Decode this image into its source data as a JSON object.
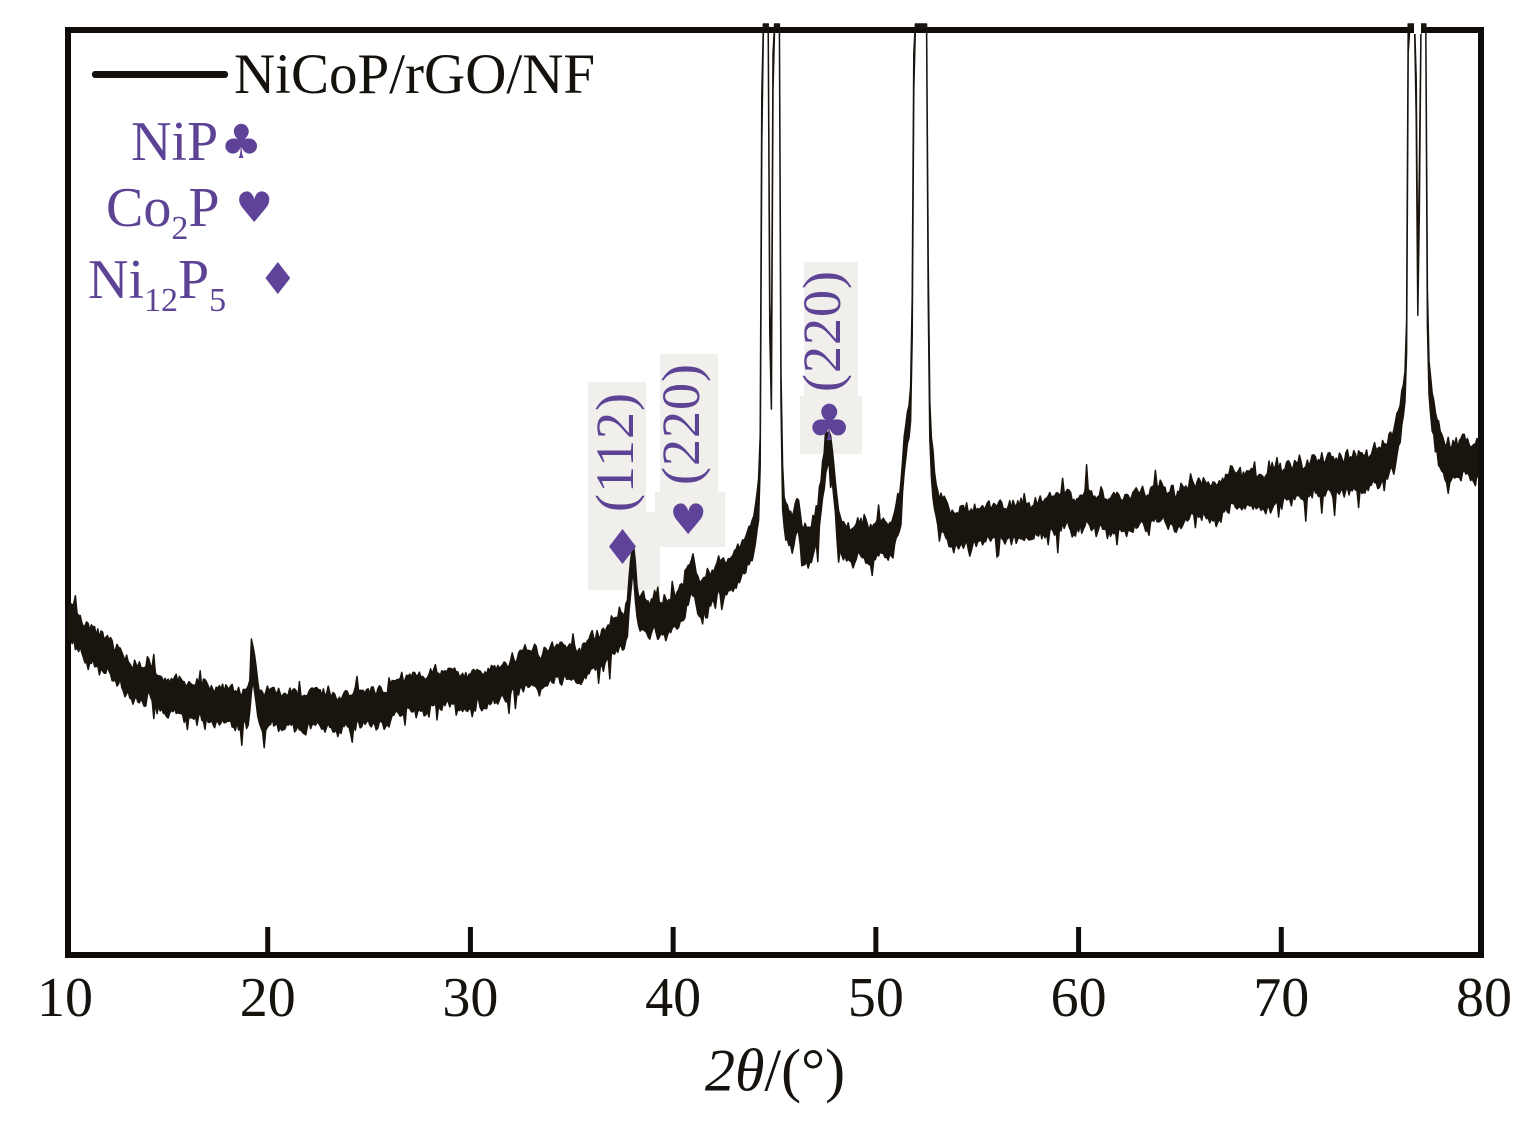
{
  "colors": {
    "trace": "#1a140f",
    "axis": "#0f0c0a",
    "purple_text": "#5c4394",
    "purple_marker": "#5e4399",
    "artifact_box": "#f1efec"
  },
  "legend": {
    "series": {
      "label": "NiCoP/rGO/NF"
    },
    "phases": [
      {
        "name": "NiP",
        "marker": "club",
        "marker_glyph": "♣",
        "parts": {
          "pre": "NiP"
        }
      },
      {
        "name": "Co2P",
        "marker": "heart",
        "marker_glyph": "♥",
        "parts": {
          "pre": "Co",
          "sub1": "2",
          "mid": "P"
        }
      },
      {
        "name": "Ni12P5",
        "marker": "diamond",
        "marker_glyph": "♦",
        "parts": {
          "pre": "Ni",
          "sub1": "12",
          "mid": "P",
          "sub2": "5"
        }
      }
    ]
  },
  "axis": {
    "xlabel_italic": "2θ",
    "xlabel_rest": "/(°)"
  },
  "chart_data": {
    "type": "line",
    "title": "",
    "xlabel": "2θ/(°)",
    "ylabel": "",
    "xlim": [
      10,
      80
    ],
    "x_ticks": [
      10,
      20,
      30,
      40,
      50,
      60,
      70,
      80
    ],
    "grid": false,
    "legend_position": "top-left",
    "series": [
      {
        "name": "NiCoP/rGO/NF",
        "color": "#1a140f"
      }
    ],
    "baseline_au": [
      [
        10,
        338
      ],
      [
        11.5,
        310
      ],
      [
        13,
        287
      ],
      [
        15,
        267
      ],
      [
        17,
        255
      ],
      [
        19,
        250
      ],
      [
        21,
        248
      ],
      [
        23,
        249
      ],
      [
        25,
        253
      ],
      [
        27,
        258
      ],
      [
        29,
        265
      ],
      [
        31,
        274
      ],
      [
        33,
        286
      ],
      [
        35,
        299
      ],
      [
        37,
        316
      ],
      [
        39,
        337
      ],
      [
        41,
        355
      ],
      [
        42.5,
        380
      ],
      [
        43.5,
        398
      ],
      [
        44.2,
        408
      ],
      [
        45,
        404
      ],
      [
        46,
        410
      ],
      [
        47.6,
        420
      ],
      [
        49,
        412
      ],
      [
        50.5,
        420
      ],
      [
        52,
        428
      ],
      [
        53.5,
        429
      ],
      [
        55,
        431
      ],
      [
        57,
        436
      ],
      [
        59,
        440
      ],
      [
        61,
        446
      ],
      [
        63,
        451
      ],
      [
        65,
        456
      ],
      [
        67,
        462
      ],
      [
        69,
        470
      ],
      [
        71,
        477
      ],
      [
        73,
        482
      ],
      [
        74.5,
        491
      ],
      [
        75.7,
        504
      ],
      [
        76.8,
        504
      ],
      [
        78,
        498
      ],
      [
        80,
        501
      ]
    ],
    "peaks": [
      {
        "two_theta": 19.3,
        "amplitude": 42,
        "sigma": 0.12
      },
      {
        "two_theta": 38.0,
        "amplitude": 62,
        "sigma": 0.16
      },
      {
        "two_theta": 40.9,
        "amplitude": 26,
        "sigma": 0.22
      },
      {
        "two_theta": 44.55,
        "amplitude": 3000,
        "sigma": 0.085,
        "clipped": true
      },
      {
        "two_theta": 45.1,
        "amplitude": 3000,
        "sigma": 0.085,
        "clipped": true
      },
      {
        "two_theta": 46.15,
        "amplitude": 30,
        "sigma": 0.12
      },
      {
        "two_theta": 47.65,
        "amplitude": 90,
        "sigma": 0.28
      },
      {
        "two_theta": 51.5,
        "amplitude": 55,
        "sigma": 0.18
      },
      {
        "two_theta": 52.2,
        "amplitude": 3000,
        "sigma": 0.16,
        "clipped": true
      },
      {
        "two_theta": 76.45,
        "amplitude": 3000,
        "sigma": 0.09,
        "clipped": true
      },
      {
        "two_theta": 77.0,
        "amplitude": 3000,
        "sigma": 0.075,
        "clipped": true
      },
      {
        "two_theta": 44.8,
        "amplitude": 120,
        "sigma": 0.45
      },
      {
        "two_theta": 52.2,
        "amplitude": 120,
        "sigma": 0.5
      },
      {
        "two_theta": 76.7,
        "amplitude": 140,
        "sigma": 0.5
      }
    ],
    "annotations": [
      {
        "hkl": "(112)",
        "phase": "Ni12P5",
        "marker": "diamond",
        "marker_glyph": "♦",
        "two_theta": 37.5
      },
      {
        "hkl": "(220)",
        "phase": "Co2P",
        "marker": "heart",
        "marker_glyph": "♥",
        "two_theta": 40.75
      },
      {
        "hkl": "(220)",
        "phase": "NiP",
        "marker": "club",
        "marker_glyph": "♣",
        "two_theta": 47.7
      }
    ]
  }
}
